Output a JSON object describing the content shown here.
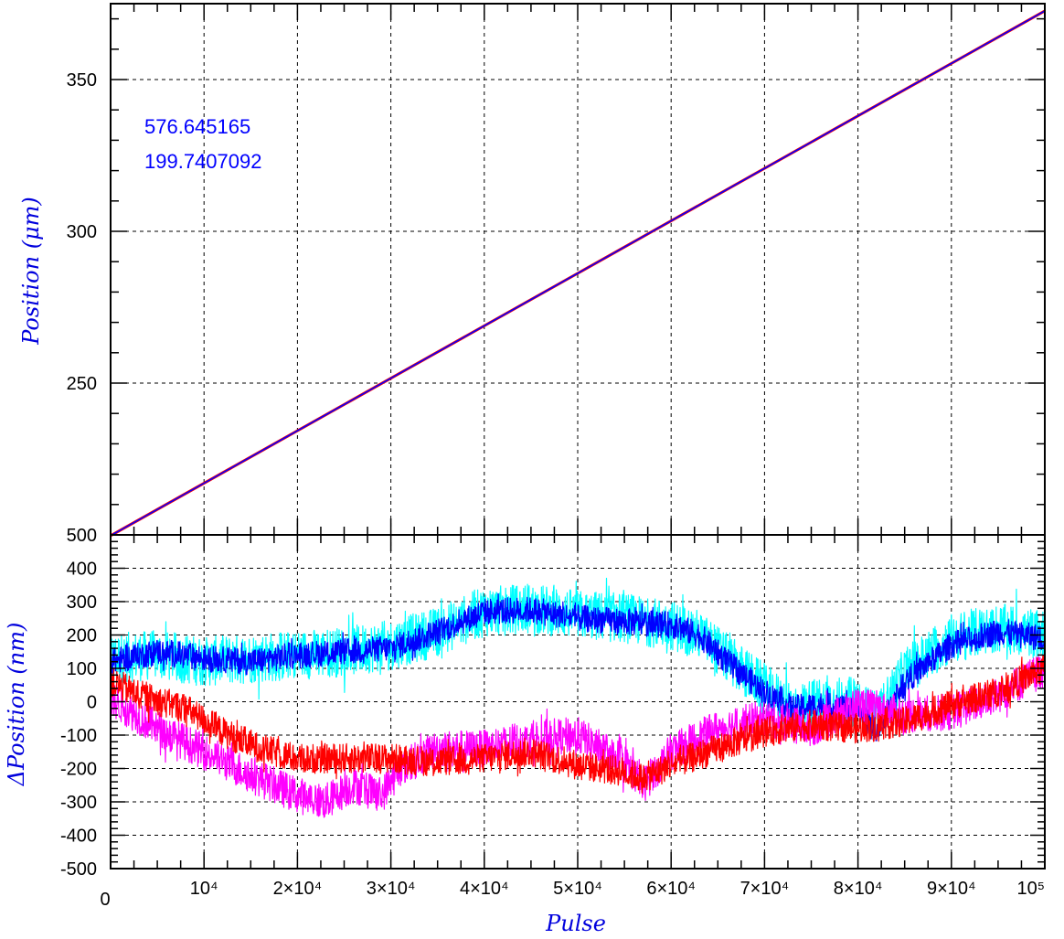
{
  "colors": {
    "annotation": "#0000ff",
    "axis_title": "#0000dd",
    "grid": "#000000",
    "fit_line": "#ff0000",
    "data_line": "#0000ff"
  },
  "chart_data": [
    {
      "type": "line",
      "panel": "top",
      "ylabel": "Position (μm)",
      "xlim": [
        0,
        100000
      ],
      "ylim": [
        200,
        375
      ],
      "y_ticks": [
        250,
        300,
        350
      ],
      "y_tick_labels": [
        "250",
        "300",
        "350"
      ],
      "grid": true,
      "annotations": [
        "576.645165",
        "199.7407092"
      ],
      "series": [
        {
          "color": "#ff0000",
          "x": [
            0,
            100000
          ],
          "y": [
            199.74,
            372.6
          ]
        },
        {
          "color": "#0000ff",
          "x": [
            0,
            100000
          ],
          "y": [
            199.74,
            372.6
          ]
        }
      ]
    },
    {
      "type": "line",
      "panel": "bottom",
      "xlabel": "Pulse",
      "ylabel": "ΔPosition (nm)",
      "xlim": [
        0,
        100000
      ],
      "ylim": [
        -500,
        500
      ],
      "x_ticks": [
        0,
        10000,
        20000,
        30000,
        40000,
        50000,
        60000,
        70000,
        80000,
        90000,
        100000
      ],
      "x_tick_labels": [
        "0",
        "10⁴",
        "2×10⁴",
        "3×10⁴",
        "4×10⁴",
        "5×10⁴",
        "6×10⁴",
        "7×10⁴",
        "8×10⁴",
        "9×10⁴",
        "10⁵"
      ],
      "y_ticks": [
        -500,
        -400,
        -300,
        -200,
        -100,
        0,
        100,
        200,
        300,
        400,
        500
      ],
      "y_tick_labels": [
        "-500",
        "-400",
        "-300",
        "-200",
        "-100",
        "0",
        "100",
        "200",
        "300",
        "400",
        "500"
      ],
      "grid": true,
      "series": [
        {
          "color": "#00ffff",
          "band": 75,
          "x": [
            0,
            5000,
            10000,
            15000,
            20000,
            25000,
            30000,
            35000,
            40000,
            45000,
            50000,
            55000,
            60000,
            63000,
            66000,
            70000,
            73000,
            76000,
            80000,
            82000,
            85000,
            90000,
            95000,
            100000
          ],
          "y": [
            130,
            140,
            120,
            130,
            140,
            150,
            170,
            210,
            270,
            280,
            260,
            250,
            230,
            200,
            130,
            40,
            -20,
            0,
            0,
            -50,
            90,
            190,
            220,
            200
          ]
        },
        {
          "color": "#0000ff",
          "band": 40,
          "x": [
            0,
            5000,
            10000,
            15000,
            20000,
            25000,
            30000,
            35000,
            40000,
            45000,
            50000,
            55000,
            60000,
            63000,
            66000,
            70000,
            73000,
            76000,
            80000,
            82000,
            85000,
            90000,
            95000,
            100000
          ],
          "y": [
            120,
            150,
            130,
            120,
            140,
            150,
            160,
            210,
            270,
            275,
            250,
            240,
            230,
            200,
            120,
            30,
            -20,
            -10,
            -30,
            -90,
            60,
            170,
            210,
            190
          ]
        },
        {
          "color": "#ff00ff",
          "band": 55,
          "x": [
            0,
            5000,
            10000,
            15000,
            20000,
            23000,
            26000,
            29000,
            31000,
            35000,
            40000,
            45000,
            50000,
            55000,
            57000,
            60000,
            65000,
            70000,
            75000,
            80000,
            85000,
            90000,
            95000,
            100000
          ],
          "y": [
            10,
            -80,
            -150,
            -220,
            -280,
            -300,
            -250,
            -280,
            -200,
            -140,
            -140,
            -110,
            -100,
            -180,
            -250,
            -150,
            -80,
            -50,
            -80,
            -10,
            -40,
            -30,
            20,
            100
          ]
        },
        {
          "color": "#ff0000",
          "band": 45,
          "x": [
            0,
            4000,
            8000,
            12000,
            16000,
            20000,
            25000,
            30000,
            35000,
            40000,
            45000,
            50000,
            55000,
            57000,
            60000,
            65000,
            70000,
            75000,
            80000,
            85000,
            90000,
            95000,
            100000
          ],
          "y": [
            60,
            10,
            -20,
            -90,
            -140,
            -170,
            -170,
            -170,
            -180,
            -170,
            -150,
            -190,
            -210,
            -230,
            -190,
            -140,
            -90,
            -70,
            -80,
            -60,
            -10,
            30,
            100
          ]
        }
      ]
    }
  ]
}
